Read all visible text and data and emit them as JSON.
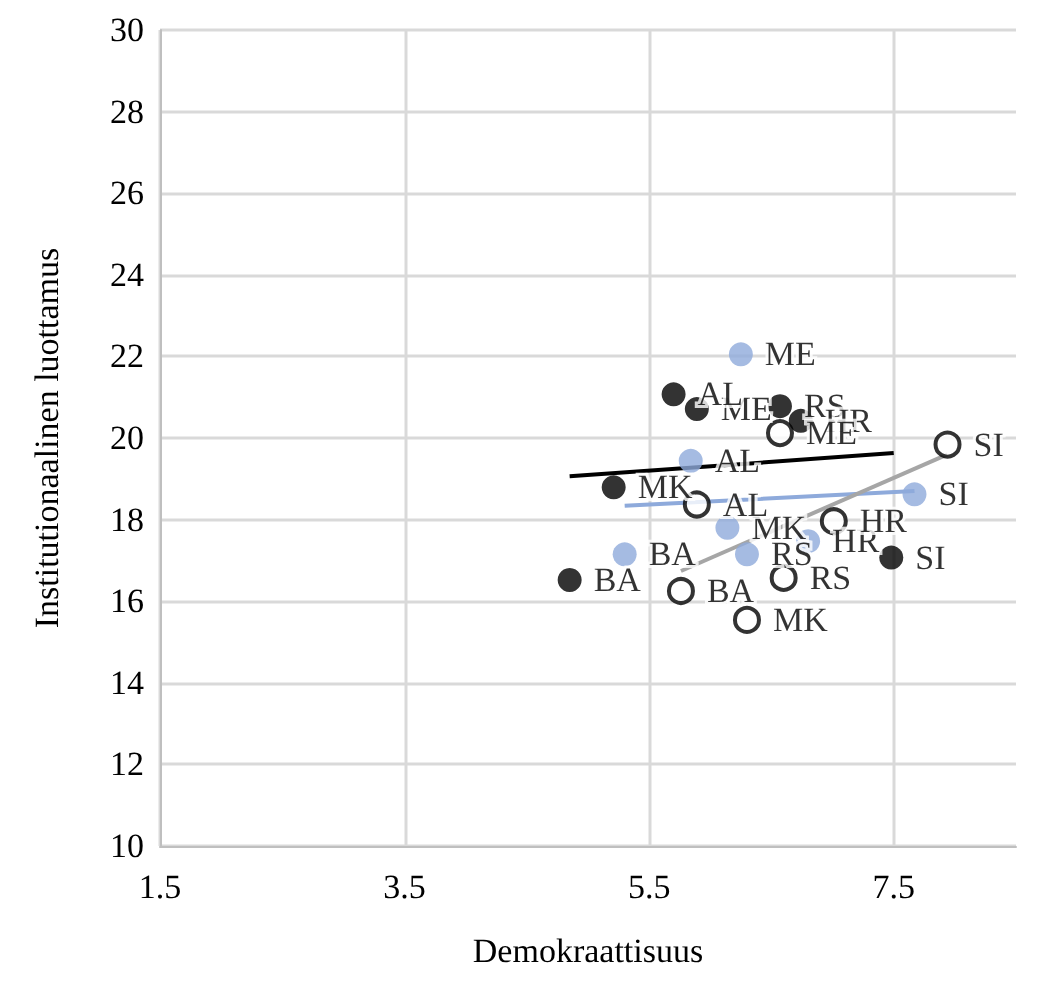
{
  "chart_data": {
    "type": "scatter",
    "xlabel": "Demokraattisuus",
    "ylabel": "Institutionaalinen luottamus",
    "xlim": [
      1.5,
      8.5
    ],
    "xticks": [
      1.5,
      3.5,
      5.5,
      7.5
    ],
    "ylim": [
      10,
      30
    ],
    "yticks": [
      10,
      12,
      14,
      16,
      18,
      20,
      22,
      24,
      26,
      28,
      30
    ],
    "grid": true,
    "marker": "circle",
    "series": [
      {
        "color": "#8eaadb",
        "x": [
          6.25,
          5.84,
          6.14,
          5.3,
          6.3,
          6.8,
          7.67
        ],
        "values": [
          22.05,
          19.44,
          17.8,
          17.15,
          17.15,
          17.47,
          18.62
        ],
        "value_labels": [
          "ME",
          "AL",
          "MK",
          "BA",
          "RS",
          "HR",
          "SI"
        ]
      },
      {
        "color": "#000000",
        "x": [
          5.89,
          5.7,
          5.21,
          4.85,
          6.57,
          6.74,
          7.48
        ],
        "values": [
          20.71,
          21.07,
          18.79,
          16.52,
          20.78,
          20.42,
          17.07
        ],
        "value_labels": [
          "ME",
          "AL",
          "MK",
          "BA",
          "RS",
          "HR",
          "SI"
        ]
      },
      {
        "color": "#ffffff",
        "x": [
          6.57,
          5.89,
          6.3,
          5.76,
          6.6,
          7.01,
          7.94
        ],
        "values": [
          20.12,
          18.37,
          15.54,
          16.25,
          16.57,
          17.96,
          19.84
        ],
        "value_labels": [
          "ME",
          "AL",
          "MK",
          "BA",
          "RS",
          "HR",
          "SI"
        ]
      },
      {
        "type": "line",
        "marker": "none",
        "color": "#000000",
        "x": [
          4.85,
          7.5
        ],
        "values": [
          19.06,
          19.63
        ]
      },
      {
        "type": "line",
        "marker": "none",
        "color": "#8eaadb",
        "x": [
          5.3,
          7.67
        ],
        "values": [
          18.34,
          18.7
        ]
      },
      {
        "type": "line",
        "marker": "none",
        "color": "#a6a6a6",
        "x": [
          5.76,
          7.94
        ],
        "values": [
          16.74,
          19.6
        ]
      }
    ]
  }
}
